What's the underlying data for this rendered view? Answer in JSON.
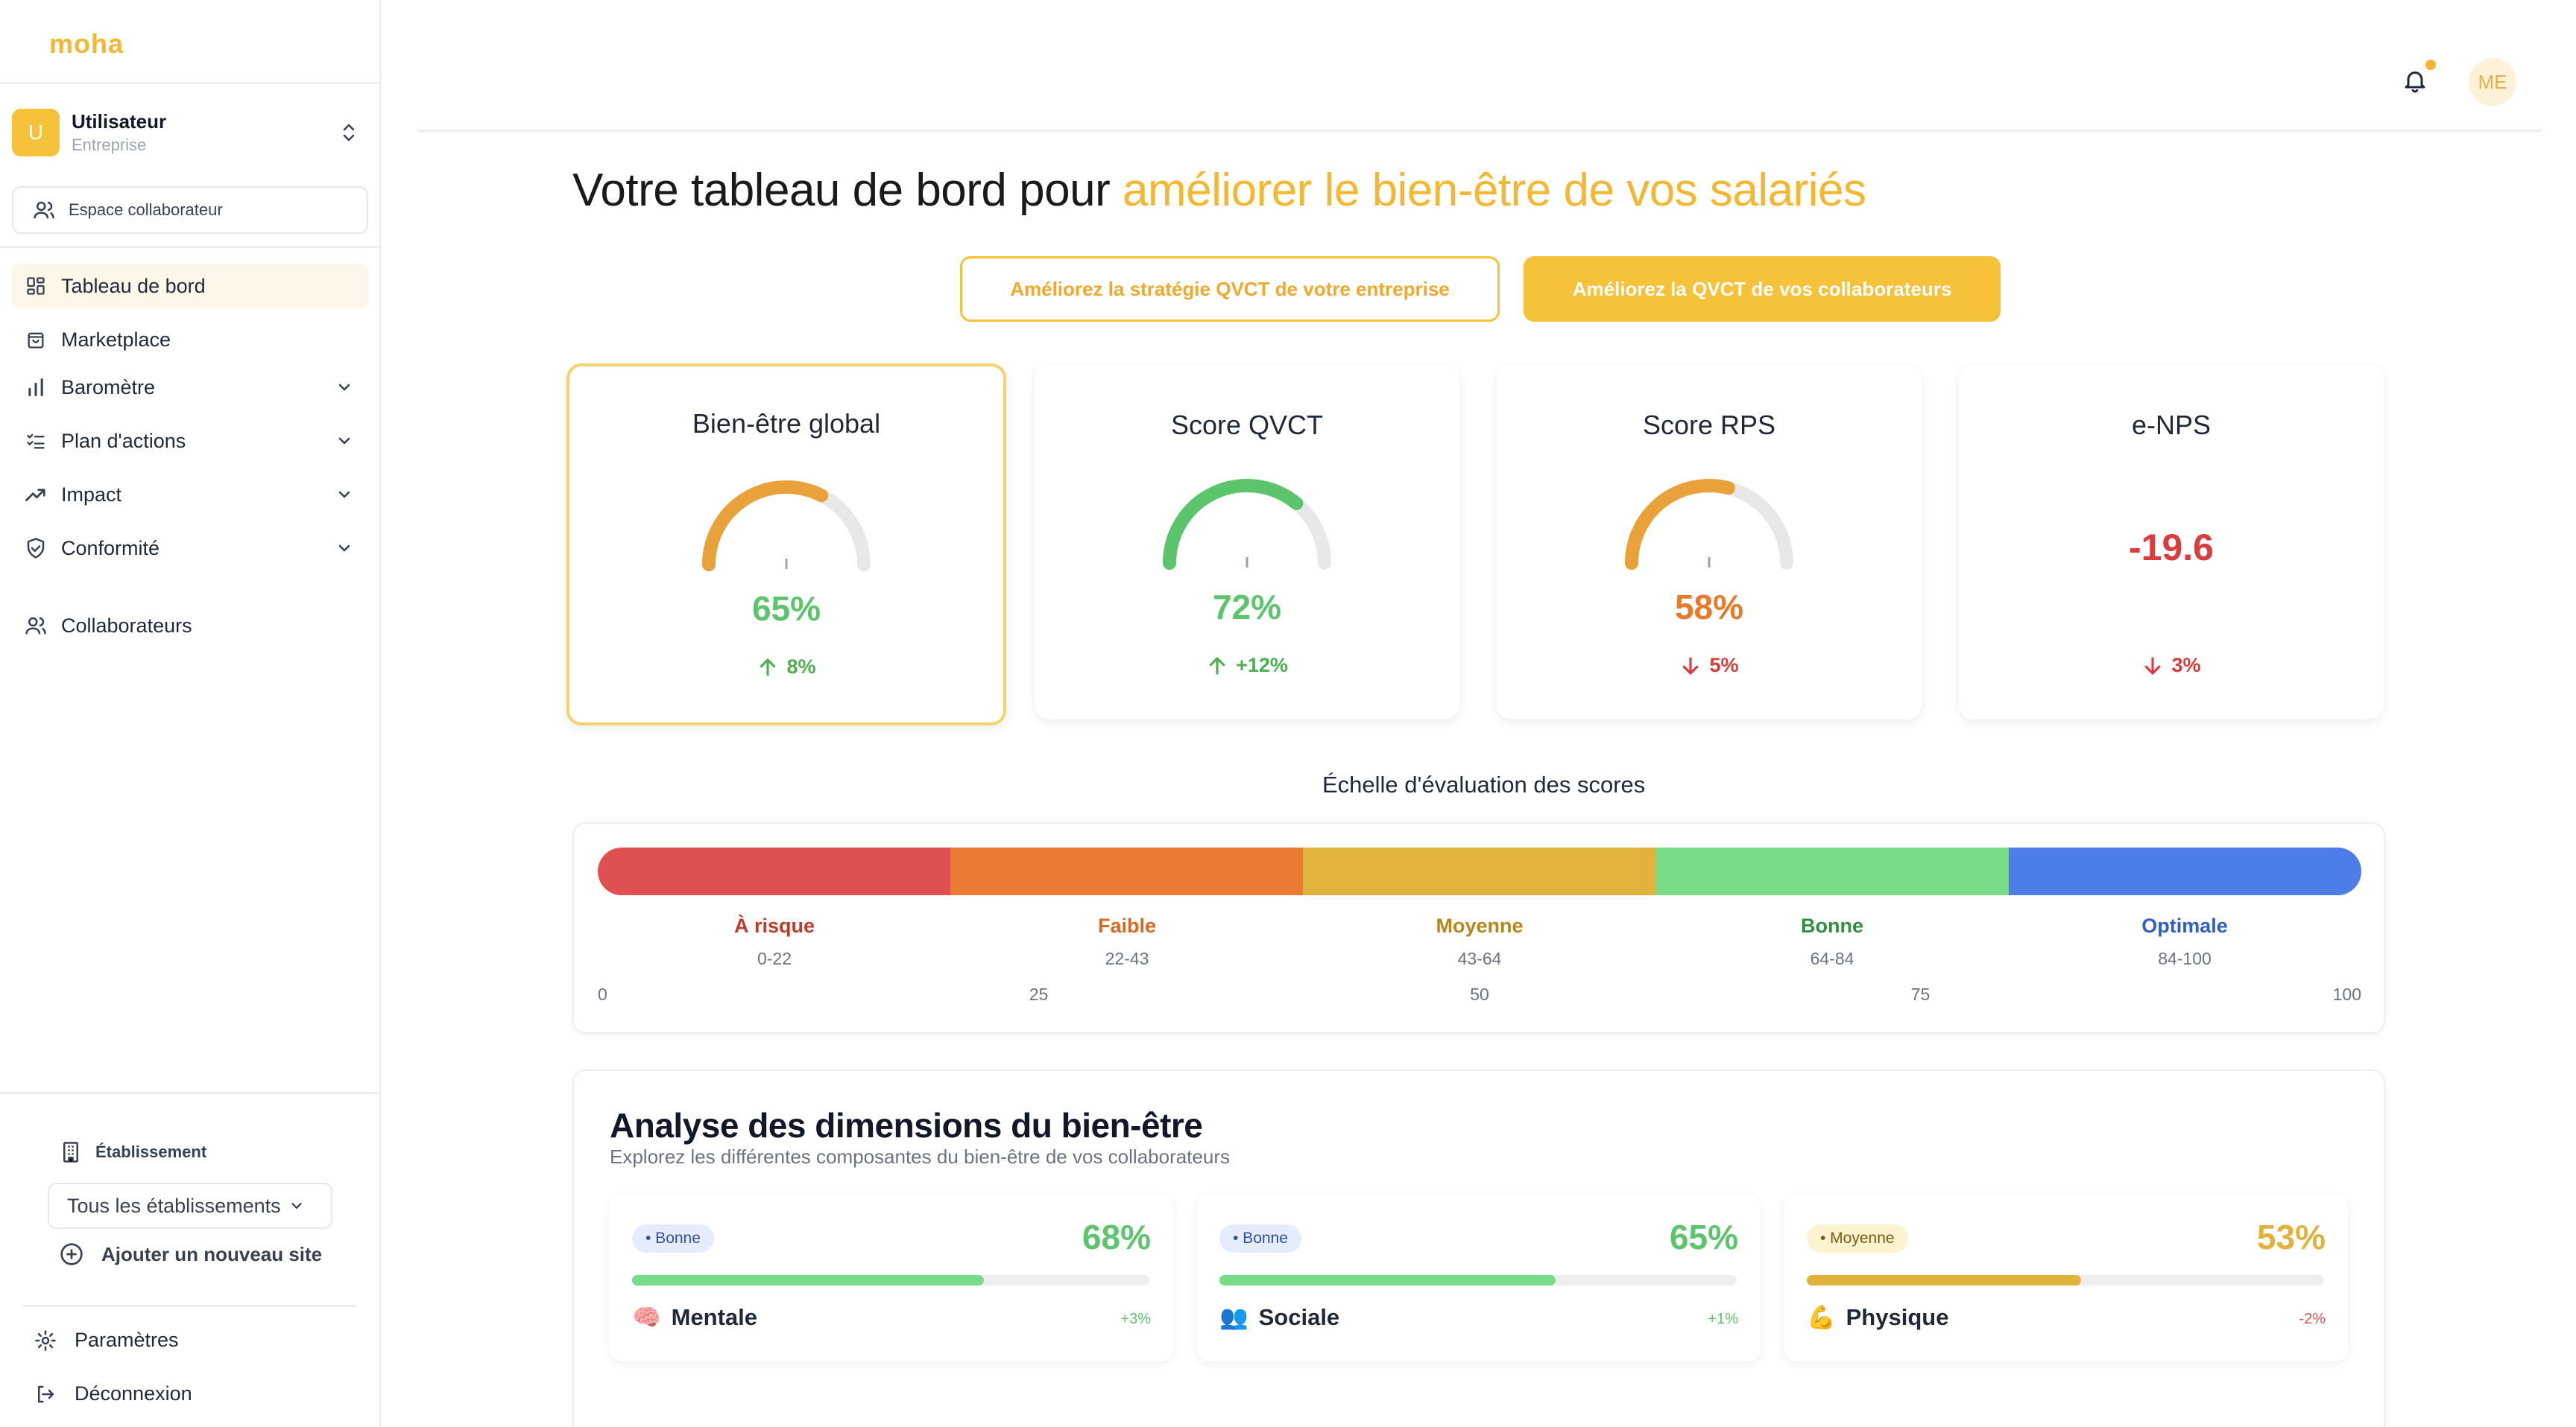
{
  "app": {
    "logo": "moha"
  },
  "user": {
    "initial": "U",
    "name": "Utilisateur",
    "role": "Entreprise"
  },
  "sidebar": {
    "space_button": "Espace collaborateur",
    "items": [
      {
        "label": "Tableau de bord"
      },
      {
        "label": "Marketplace"
      },
      {
        "label": "Baromètre"
      },
      {
        "label": "Plan d'actions"
      },
      {
        "label": "Impact"
      },
      {
        "label": "Conformité"
      },
      {
        "label": "Collaborateurs"
      }
    ],
    "establishment_label": "Établissement",
    "establishment_select": "Tous les établissements",
    "add_site": "Ajouter un nouveau site",
    "settings": "Paramètres",
    "logout": "Déconnexion"
  },
  "header": {
    "avatar": "ME"
  },
  "main": {
    "headline_prefix": "Votre tableau de bord pour ",
    "headline_highlight": "améliorer le bien-être de vos salariés",
    "btn_strategy": "Améliorez la stratégie QVCT de votre entreprise",
    "btn_collab": "Améliorez la QVCT de vos collaborateurs"
  },
  "scores": [
    {
      "title": "Bien-être global",
      "value": "65%",
      "percent": 65,
      "trend": "8%",
      "direction": "up",
      "color": "#e9a23a",
      "value_color": "#5cc46a"
    },
    {
      "title": "Score QVCT",
      "value": "72%",
      "percent": 72,
      "trend": "+12%",
      "direction": "up",
      "color": "#5cc46a",
      "value_color": "#5cc46a"
    },
    {
      "title": "Score RPS",
      "value": "58%",
      "percent": 58,
      "trend": "5%",
      "direction": "down",
      "color": "#e9a23a",
      "value_color": "#ea7a2a"
    },
    {
      "title": "e-NPS",
      "value": "-19.6",
      "trend": "3%",
      "direction": "down"
    }
  ],
  "scale": {
    "title": "Échelle d'évaluation des scores",
    "levels": [
      {
        "label": "À risque",
        "range": "0-22",
        "color": "#df5050",
        "text_color": "#c0392b"
      },
      {
        "label": "Faible",
        "range": "22-43",
        "color": "#ea7b34",
        "text_color": "#d4691f"
      },
      {
        "label": "Moyenne",
        "range": "43-64",
        "color": "#e2b33c",
        "text_color": "#b7861b"
      },
      {
        "label": "Bonne",
        "range": "64-84",
        "color": "#78db87",
        "text_color": "#2f8f3e"
      },
      {
        "label": "Optimale",
        "range": "84-100",
        "color": "#4c7de8",
        "text_color": "#2f5fc4"
      }
    ],
    "ticks": [
      "0",
      "25",
      "50",
      "75",
      "100"
    ]
  },
  "dimensions": {
    "title": "Analyse des dimensions du bien-être",
    "subtitle": "Explorez les différentes composantes du bien-être de vos collaborateurs",
    "items": [
      {
        "badge": "Bonne",
        "badge_bg": "#e5ecfb",
        "badge_color": "#2f4fa8",
        "value": "68%",
        "percent": 68,
        "value_color": "#5cc46a",
        "bar_color": "#78db87",
        "emoji": "🧠",
        "name": "Mentale",
        "delta": "+3%",
        "delta_color": "#5cc46a"
      },
      {
        "badge": "Bonne",
        "badge_bg": "#e5ecfb",
        "badge_color": "#2f4fa8",
        "value": "65%",
        "percent": 65,
        "value_color": "#5cc46a",
        "bar_color": "#78db87",
        "emoji": "👥",
        "name": "Sociale",
        "delta": "+1%",
        "delta_color": "#5cc46a"
      },
      {
        "badge": "Moyenne",
        "badge_bg": "#fdf3cf",
        "badge_color": "#7a5a10",
        "value": "53%",
        "percent": 53,
        "value_color": "#e2b33c",
        "bar_color": "#e2b33c",
        "emoji": "💪",
        "name": "Physique",
        "delta": "-2%",
        "delta_color": "#df5050"
      }
    ]
  }
}
